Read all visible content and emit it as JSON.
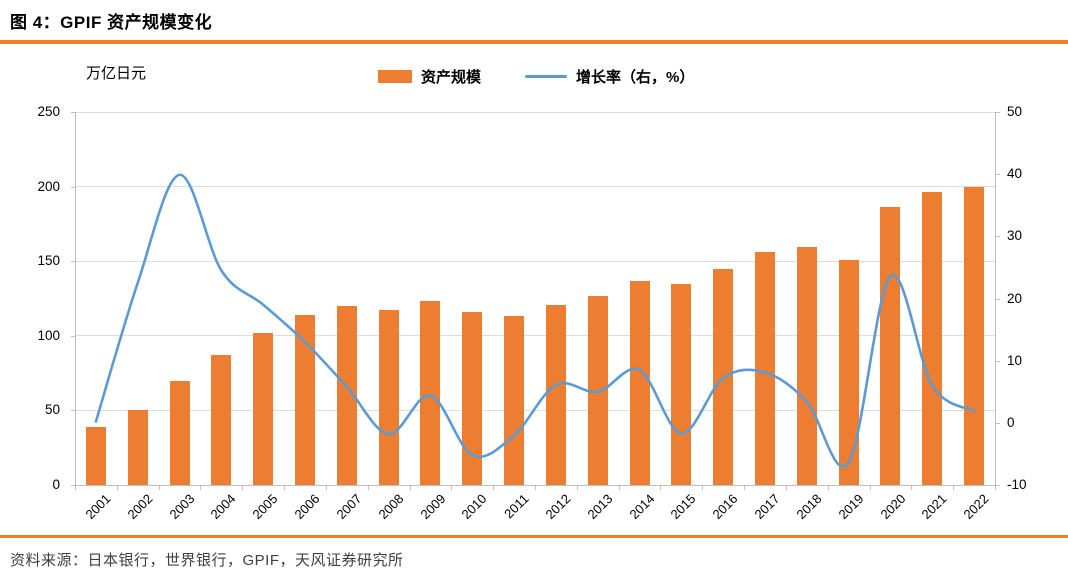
{
  "title": "图 4：GPIF 资产规模变化",
  "footer": {
    "source": "资料来源：日本银行，世界银行，GPIF，天风证券研究所"
  },
  "colors": {
    "bar_orange": "#ED7D31",
    "line_blue": "#5B9BD5",
    "rule_orange": "#EE7F24",
    "grid": "#DCDCDC",
    "axis": "#BFBFBF",
    "tick_text": "#000000",
    "source_text": "#404040"
  },
  "chart_data": {
    "type": "bar+line combo",
    "title": "GPIF 资产规模变化",
    "unit_label": "万亿日元",
    "grid": "horizontal gridlines on, from left axis",
    "legend_position": "top-center",
    "legend": [
      {
        "name": "资产规模",
        "type": "bar"
      },
      {
        "name": "增长率（右，%）",
        "type": "line"
      }
    ],
    "categories": [
      "2001",
      "2002",
      "2003",
      "2004",
      "2005",
      "2006",
      "2007",
      "2008",
      "2009",
      "2010",
      "2011",
      "2012",
      "2013",
      "2014",
      "2015",
      "2016",
      "2017",
      "2018",
      "2019",
      "2020",
      "2021",
      "2022"
    ],
    "series": [
      {
        "name": "资产规模",
        "type": "bar",
        "axis": "left",
        "color": "#ED7D31",
        "values": [
          39,
          50,
          70,
          87,
          102,
          114,
          120,
          117.6,
          123,
          116,
          113.6,
          120.5,
          126.6,
          137,
          134.7,
          144.9,
          156.4,
          159.2,
          150.6,
          186,
          196.6,
          200
        ]
      },
      {
        "name": "增长率（右，%）",
        "type": "line",
        "axis": "right",
        "color": "#5B9BD5",
        "smoothed": true,
        "values": [
          0.2,
          22.5,
          39.9,
          24.5,
          19.0,
          13.0,
          5.8,
          -1.8,
          4.4,
          -5.2,
          -2.0,
          6.1,
          5.0,
          8.5,
          -1.7,
          7.2,
          8.1,
          3.4,
          -6.4,
          23.6,
          6.0,
          1.9
        ]
      }
    ],
    "left_axis": {
      "min": 0,
      "max": 250,
      "step": 50,
      "ticks": [
        0,
        50,
        100,
        150,
        200,
        250
      ]
    },
    "right_axis": {
      "min": -10,
      "max": 50,
      "step": 10,
      "ticks": [
        -10,
        0,
        10,
        20,
        30,
        40,
        50
      ]
    }
  }
}
